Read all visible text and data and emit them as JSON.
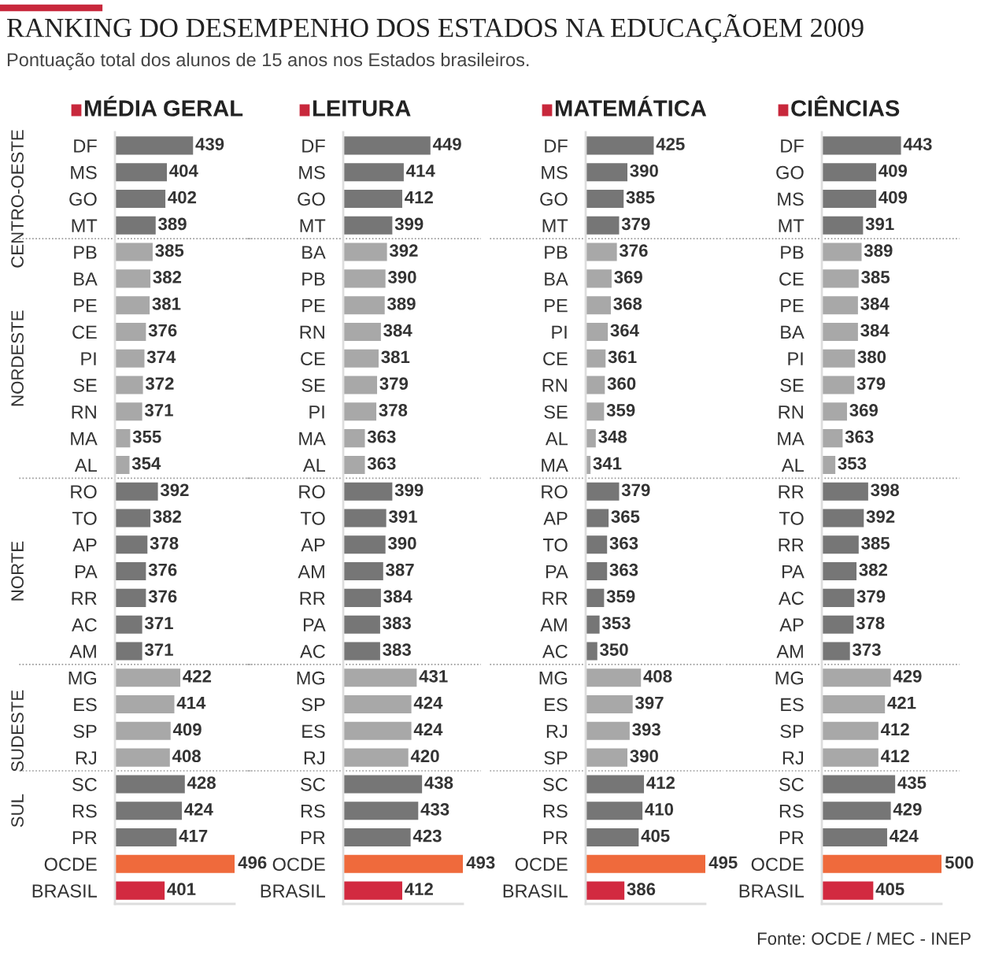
{
  "chart_data": [
    {
      "type": "bar",
      "orientation": "horizontal",
      "title": "RANKING DO DESEMPENHO DOS ESTADOS NA EDUCAÇÃOEM 2009",
      "subtitle": "Pontuação total dos alunos de 15 anos nos Estados brasileiros.",
      "categories": [
        "DF",
        "MS",
        "GO",
        "MT",
        "PB",
        "BA",
        "PE",
        "CE",
        "PI",
        "SE",
        "RN",
        "MA",
        "AL",
        "RO",
        "TO",
        "AP",
        "PA",
        "RR",
        "AC",
        "AM",
        "MG",
        "ES",
        "SP",
        "RJ",
        "SC",
        "RS",
        "PR",
        "OCDE",
        "BRASIL"
      ],
      "values": [
        439,
        404,
        402,
        389,
        385,
        382,
        381,
        376,
        374,
        372,
        371,
        355,
        354,
        392,
        382,
        378,
        376,
        376,
        371,
        371,
        422,
        414,
        409,
        408,
        428,
        424,
        417,
        496,
        401
      ],
      "colors": [
        "#767676",
        "#767676",
        "#767676",
        "#767676",
        "#a8a8a8",
        "#a8a8a8",
        "#a8a8a8",
        "#a8a8a8",
        "#a8a8a8",
        "#a8a8a8",
        "#a8a8a8",
        "#a8a8a8",
        "#a8a8a8",
        "#767676",
        "#767676",
        "#767676",
        "#767676",
        "#767676",
        "#767676",
        "#767676",
        "#a8a8a8",
        "#a8a8a8",
        "#a8a8a8",
        "#a8a8a8",
        "#767676",
        "#767676",
        "#767676",
        "#ef6a3c",
        "#d22a40"
      ],
      "xlim": [
        336,
        496
      ],
      "data_labels": true,
      "tick_labels": "y",
      "annotations": [
        "MÉDIA GERAL",
        {
          "text": "CENTRO-OESTE",
          "y": "GO"
        },
        {
          "text": "NORDESTE",
          "y": "PI"
        },
        {
          "text": "NORTE",
          "y": "PA"
        },
        {
          "text": "SUDESTE",
          "y": "SP"
        },
        {
          "text": "SUL",
          "y": "RS"
        }
      ]
    },
    {
      "type": "bar",
      "orientation": "horizontal",
      "title": "LEITURA",
      "categories": [
        "DF",
        "MS",
        "GO",
        "MT",
        "BA",
        "PB",
        "PE",
        "RN",
        "CE",
        "SE",
        "PI",
        "MA",
        "AL",
        "RO",
        "TO",
        "AP",
        "AM",
        "RR",
        "PA",
        "AC",
        "MG",
        "SP",
        "ES",
        "RJ",
        "SC",
        "RS",
        "PR",
        "OCDE",
        "BRASIL"
      ],
      "values": [
        449,
        414,
        412,
        399,
        392,
        390,
        389,
        384,
        381,
        379,
        378,
        363,
        363,
        399,
        391,
        390,
        387,
        384,
        383,
        383,
        431,
        424,
        424,
        420,
        438,
        433,
        423,
        493,
        412
      ],
      "colors": [
        "#767676",
        "#767676",
        "#767676",
        "#767676",
        "#a8a8a8",
        "#a8a8a8",
        "#a8a8a8",
        "#a8a8a8",
        "#a8a8a8",
        "#a8a8a8",
        "#a8a8a8",
        "#a8a8a8",
        "#a8a8a8",
        "#767676",
        "#767676",
        "#767676",
        "#767676",
        "#767676",
        "#767676",
        "#767676",
        "#a8a8a8",
        "#a8a8a8",
        "#a8a8a8",
        "#a8a8a8",
        "#767676",
        "#767676",
        "#767676",
        "#ef6a3c",
        "#d22a40"
      ],
      "xlim": [
        336,
        493
      ],
      "data_labels": true,
      "tick_labels": "y"
    },
    {
      "type": "bar",
      "orientation": "horizontal",
      "title": "MATEMÁTICA",
      "categories": [
        "DF",
        "MS",
        "GO",
        "MT",
        "PB",
        "BA",
        "PE",
        "PI",
        "CE",
        "RN",
        "SE",
        "AL",
        "MA",
        "RO",
        "AP",
        "TO",
        "PA",
        "RR",
        "AM",
        "AC",
        "MG",
        "ES",
        "RJ",
        "SP",
        "SC",
        "RS",
        "PR",
        "OCDE",
        "BRASIL"
      ],
      "values": [
        425,
        390,
        385,
        379,
        376,
        369,
        368,
        364,
        361,
        360,
        359,
        348,
        341,
        379,
        365,
        363,
        363,
        359,
        353,
        350,
        408,
        397,
        393,
        390,
        412,
        410,
        405,
        495,
        386
      ],
      "colors": [
        "#767676",
        "#767676",
        "#767676",
        "#767676",
        "#a8a8a8",
        "#a8a8a8",
        "#a8a8a8",
        "#a8a8a8",
        "#a8a8a8",
        "#a8a8a8",
        "#a8a8a8",
        "#a8a8a8",
        "#a8a8a8",
        "#767676",
        "#767676",
        "#767676",
        "#767676",
        "#767676",
        "#767676",
        "#767676",
        "#a8a8a8",
        "#a8a8a8",
        "#a8a8a8",
        "#a8a8a8",
        "#767676",
        "#767676",
        "#767676",
        "#ef6a3c",
        "#d22a40"
      ],
      "xlim": [
        336,
        495
      ],
      "data_labels": true,
      "tick_labels": "y"
    },
    {
      "type": "bar",
      "orientation": "horizontal",
      "title": "CIÊNCIAS",
      "categories": [
        "DF",
        "GO",
        "MS",
        "MT",
        "PB",
        "CE",
        "PE",
        "BA",
        "PI",
        "SE",
        "RN",
        "MA",
        "AL",
        "RR",
        "TO",
        "RR",
        "PA",
        "AC",
        "AP",
        "AM",
        "MG",
        "ES",
        "SP",
        "RJ",
        "SC",
        "RS",
        "PR",
        "OCDE",
        "BRASIL"
      ],
      "values": [
        443,
        409,
        409,
        391,
        389,
        385,
        384,
        384,
        380,
        379,
        369,
        363,
        353,
        398,
        392,
        385,
        382,
        379,
        378,
        373,
        429,
        421,
        412,
        412,
        435,
        429,
        424,
        500,
        405
      ],
      "colors": [
        "#767676",
        "#767676",
        "#767676",
        "#767676",
        "#a8a8a8",
        "#a8a8a8",
        "#a8a8a8",
        "#a8a8a8",
        "#a8a8a8",
        "#a8a8a8",
        "#a8a8a8",
        "#a8a8a8",
        "#a8a8a8",
        "#767676",
        "#767676",
        "#767676",
        "#767676",
        "#767676",
        "#767676",
        "#767676",
        "#a8a8a8",
        "#a8a8a8",
        "#a8a8a8",
        "#a8a8a8",
        "#767676",
        "#767676",
        "#767676",
        "#ef6a3c",
        "#d22a40"
      ],
      "xlim": [
        336,
        500
      ],
      "data_labels": true,
      "tick_labels": "y",
      "annotations": [
        "Fonte: OCDE / MEC - INEP"
      ]
    }
  ]
}
